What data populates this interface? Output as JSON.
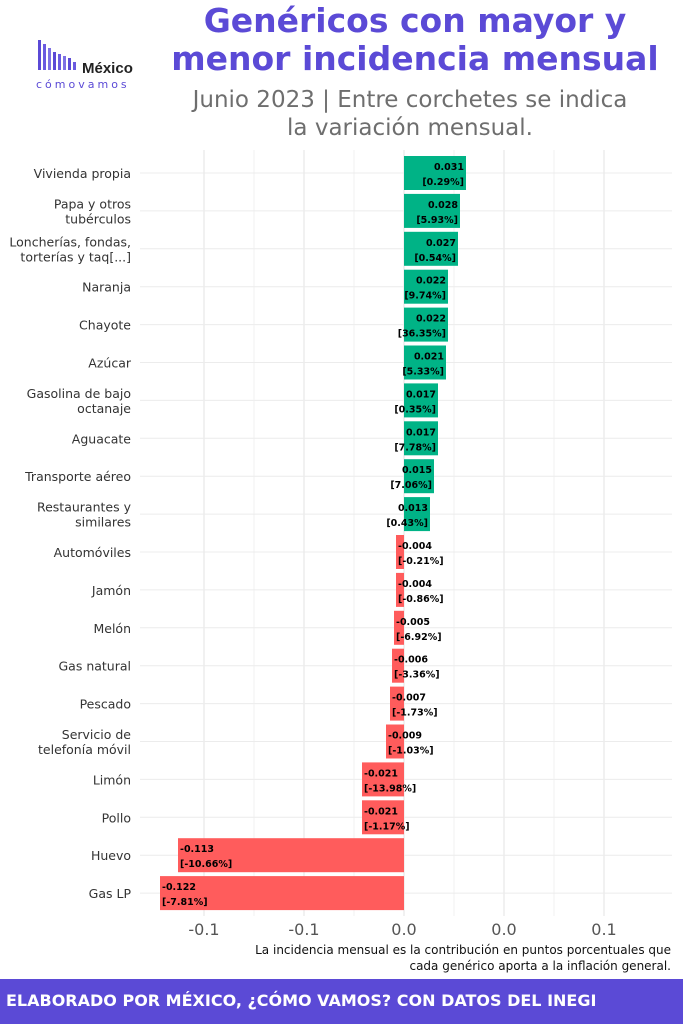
{
  "header": {
    "title_line1": "Genéricos con mayor y",
    "title_line2": "menor incidencia mensual",
    "subtitle_line1": "Junio 2023 | Entre corchetes se indica",
    "subtitle_line2": "la variación mensual."
  },
  "logo": {
    "brand": "México",
    "sub": "cómovamos"
  },
  "colors": {
    "positive": "#00b386",
    "negative": "#ff5c5c",
    "accent": "#5b4ad6"
  },
  "chart_data": {
    "type": "bar",
    "orientation": "horizontal",
    "categories": [
      "Vivienda propia",
      "Papa y otros tubérculos",
      "Loncherías, fondas, torterías y taq[...]",
      "Naranja",
      "Chayote",
      "Azúcar",
      "Gasolina de bajo octanaje",
      "Aguacate",
      "Transporte aéreo",
      "Restaurantes y similares",
      "Automóviles",
      "Jamón",
      "Melón",
      "Gas natural",
      "Pescado",
      "Servicio de telefonía móvil",
      "Limón",
      "Pollo",
      "Huevo",
      "Gas LP"
    ],
    "category_lines": [
      [
        "Vivienda propia"
      ],
      [
        "Papa y otros",
        "tubérculos"
      ],
      [
        "Loncherías, fondas,",
        "torterías y taq[...]"
      ],
      [
        "Naranja"
      ],
      [
        "Chayote"
      ],
      [
        "Azúcar"
      ],
      [
        "Gasolina de bajo",
        "octanaje"
      ],
      [
        "Aguacate"
      ],
      [
        "Transporte aéreo"
      ],
      [
        "Restaurantes y",
        "similares"
      ],
      [
        "Automóviles"
      ],
      [
        "Jamón"
      ],
      [
        "Melón"
      ],
      [
        "Gas natural"
      ],
      [
        "Pescado"
      ],
      [
        "Servicio de",
        "telefonía móvil"
      ],
      [
        "Limón"
      ],
      [
        "Pollo"
      ],
      [
        "Huevo"
      ],
      [
        "Gas LP"
      ]
    ],
    "values": [
      0.031,
      0.028,
      0.027,
      0.022,
      0.022,
      0.021,
      0.017,
      0.017,
      0.015,
      0.013,
      -0.004,
      -0.004,
      -0.005,
      -0.006,
      -0.007,
      -0.009,
      -0.021,
      -0.021,
      -0.113,
      -0.122
    ],
    "value_labels": [
      "0.031",
      "0.028",
      "0.027",
      "0.022",
      "0.022",
      "0.021",
      "0.017",
      "0.017",
      "0.015",
      "0.013",
      "-0.004",
      "-0.004",
      "-0.005",
      "-0.006",
      "-0.007",
      "-0.009",
      "-0.021",
      "-0.021",
      "-0.113",
      "-0.122"
    ],
    "variation_labels": [
      "[0.29%]",
      "[5.93%]",
      "[0.54%]",
      "[9.74%]",
      "[36.35%]",
      "[5.33%]",
      "[0.35%]",
      "[7.78%]",
      "[7.06%]",
      "[0.43%]",
      "[-0.21%]",
      "[-0.86%]",
      "[-6.92%]",
      "[-3.36%]",
      "[-1.73%]",
      "[-1.03%]",
      "[-13.98%]",
      "[-1.17%]",
      "[-10.66%]",
      "[-7.81%]"
    ],
    "x_ticks": [
      -0.1,
      -0.05,
      0,
      0.05,
      0.1
    ],
    "x_tick_labels": [
      "-0.1",
      "-0.1",
      "0.0",
      "0.0",
      "0.1"
    ],
    "xlim": [
      -0.125,
      0.125
    ],
    "grid": true
  },
  "caption": {
    "line1": "La incidencia mensual es la contribución en puntos porcentuales que",
    "line2": "cada genérico aporta a la inflación general."
  },
  "footer": {
    "text": "ELABORADO POR MÉXICO, ¿CÓMO VAMOS? CON DATOS DEL INEGI"
  }
}
